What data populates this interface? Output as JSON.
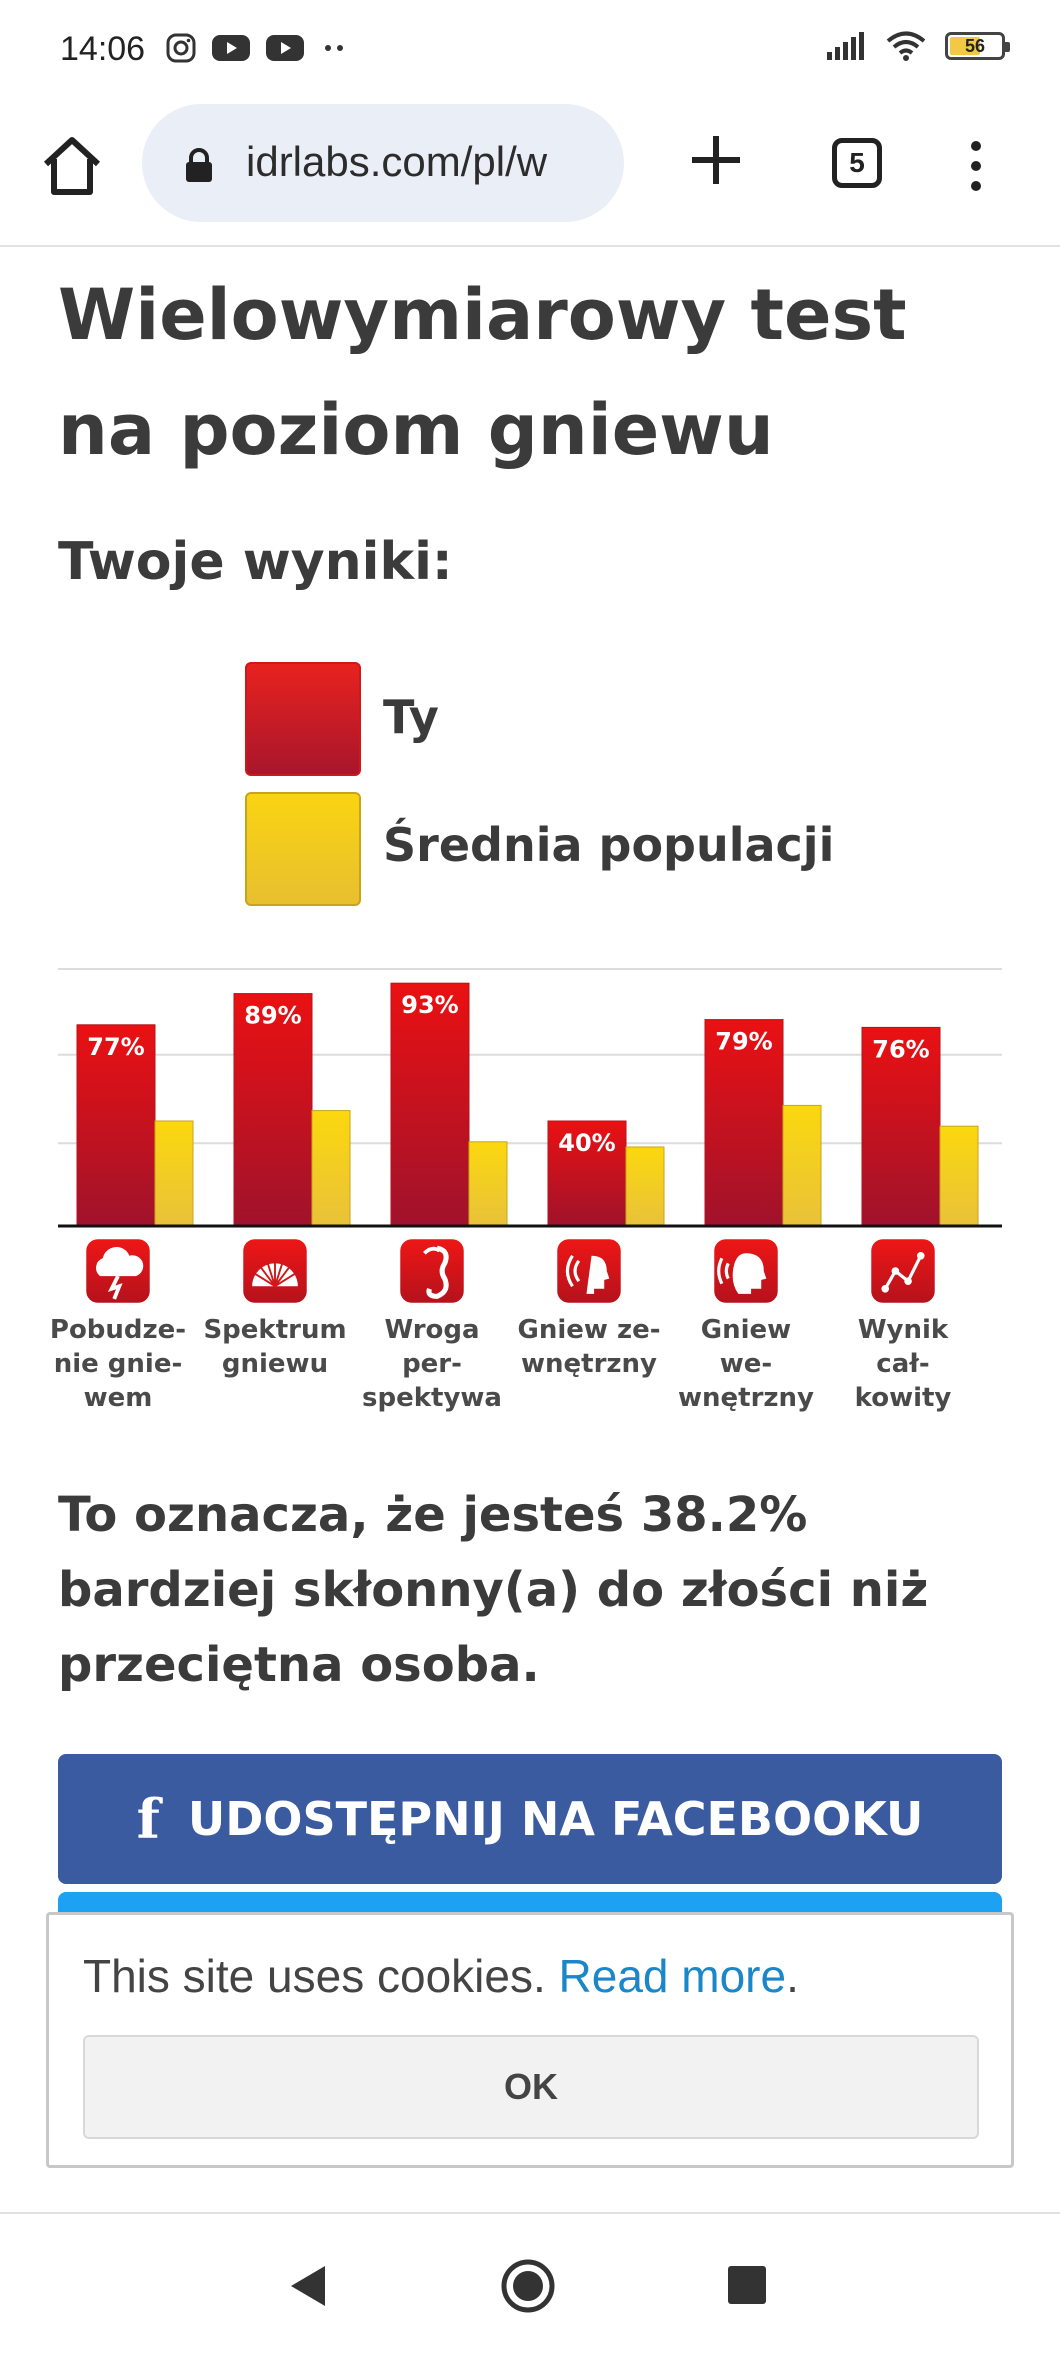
{
  "status_bar": {
    "time": "14:06",
    "icons_left": [
      "instagram-icon",
      "youtube-icon",
      "youtube-icon",
      "more-dots-icon"
    ],
    "battery": "56",
    "icons_right": [
      "signal-icon",
      "wifi-icon",
      "battery-icon"
    ]
  },
  "browser": {
    "url": "idrlabs.com/pl/w",
    "tab_count": "5"
  },
  "page": {
    "title": "Wielowymiarowy test na poziom gniewu",
    "results_heading": "Twoje wyniki:",
    "legend": {
      "you": "Ty",
      "population": "Średnia populacji"
    },
    "summary": "To oznacza, że jesteś 38.2% bardziej skłonny(a) do złości niż przeciętna osoba.",
    "facebook_button": "UDOSTĘPNIJ NA FACEBOOKU",
    "facebook_icon": "f"
  },
  "cookie_banner": {
    "text": "This site uses cookies. ",
    "link": "Read more",
    "text_end": ".",
    "ok_button": "OK"
  },
  "colors": {
    "you_bar": "#d8141f",
    "population_bar": "#f5cf15",
    "facebook": "#3b5ba0",
    "link": "#1b87c9"
  },
  "chart_data": {
    "type": "bar",
    "categories": [
      "Pobudze-\nnie gnie-\nwem",
      "Spektrum\ngniewu",
      "Wroga per-\nspektywa",
      "Gniew ze-\nwnętrzny",
      "Gniew we-\nwnętrzny",
      "Wynik cał-\nkowity"
    ],
    "category_icons": [
      "storm-cloud-icon",
      "fan-spectrum-icon",
      "seahorse-icon",
      "face-shouting-icon",
      "face-speaking-icon",
      "graph-line-icon"
    ],
    "series": [
      {
        "name": "Ty",
        "values": [
          77,
          89,
          93,
          40,
          79,
          76
        ],
        "labels": [
          "77%",
          "89%",
          "93%",
          "40%",
          "79%",
          "76%"
        ]
      },
      {
        "name": "Średnia populacji",
        "values": [
          40,
          44,
          32,
          30,
          46,
          38
        ]
      }
    ],
    "ylim": [
      0,
      100
    ],
    "grid": true,
    "legend_position": "top"
  }
}
